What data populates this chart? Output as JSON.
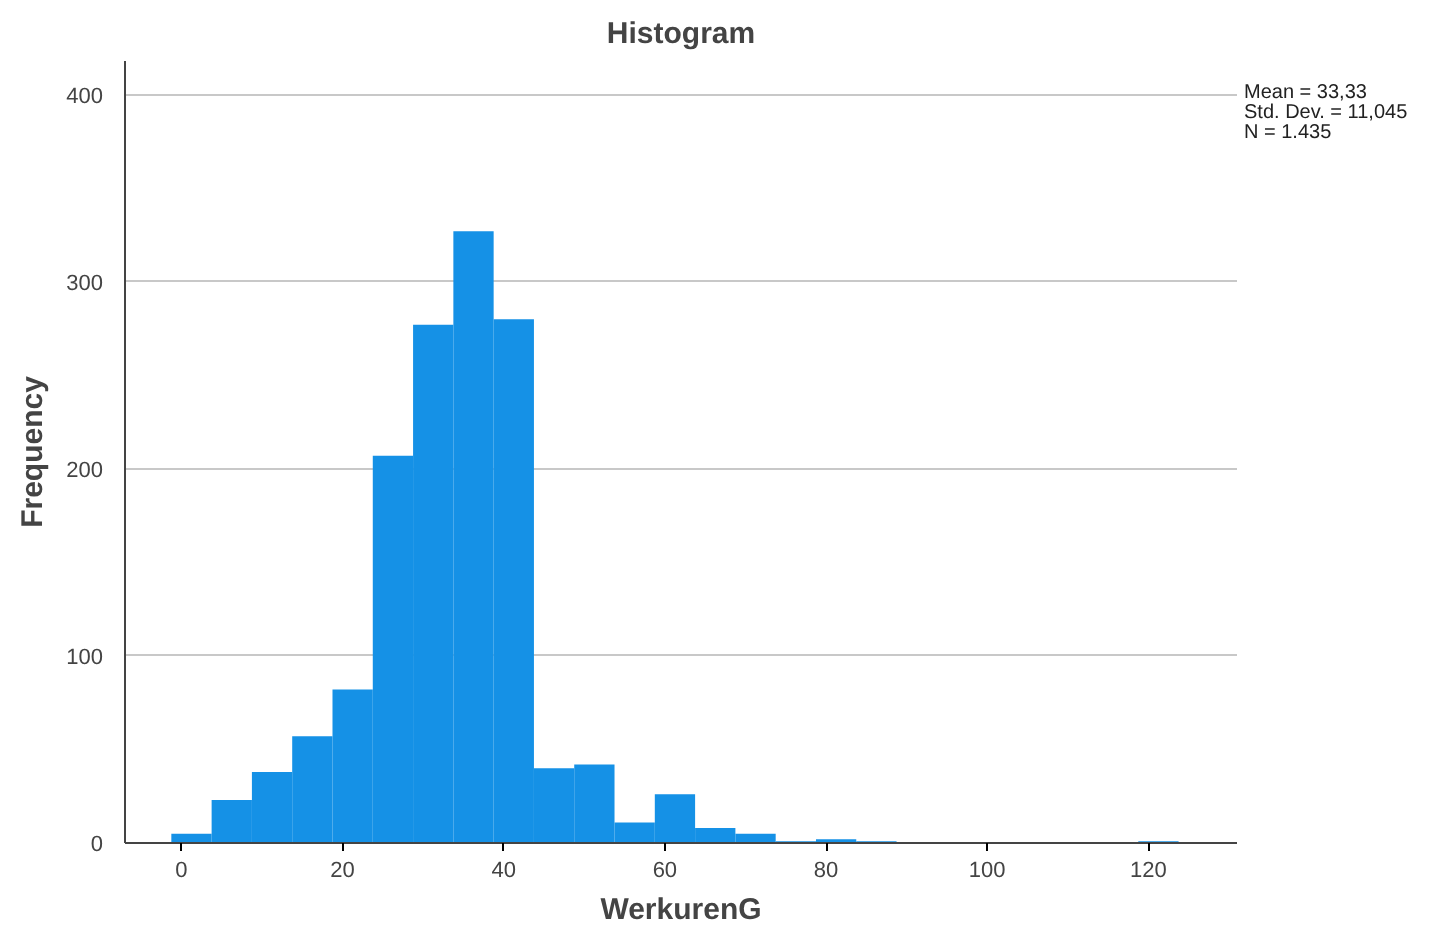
{
  "chart_data": {
    "type": "histogram",
    "title": "Histogram",
    "xlabel": "WerkurenG",
    "ylabel": "Frequency",
    "bins": [
      -1.25,
      3.75,
      8.75,
      13.75,
      18.75,
      23.75,
      28.75,
      33.75,
      38.75,
      43.75,
      48.75,
      53.75,
      58.75,
      63.75,
      68.75,
      73.75,
      78.75,
      83.75,
      88.75,
      93.75,
      98.75,
      103.75,
      108.75,
      113.75,
      118.75,
      123.75
    ],
    "values": [
      5,
      23,
      38,
      57,
      82,
      207,
      277,
      327,
      280,
      40,
      42,
      11,
      26,
      8,
      5,
      1,
      2,
      1,
      0,
      0,
      0,
      0,
      0,
      0,
      1
    ],
    "color": "#1591e6",
    "xlim": [
      -7,
      131
    ],
    "ylim": [
      0,
      418
    ],
    "xticks": [
      0,
      20,
      40,
      60,
      80,
      100,
      120
    ],
    "yticks": [
      0,
      100,
      200,
      300,
      400
    ],
    "grid": "y",
    "annotations": [
      "Mean = 33,33",
      "Std. Dev. = 11,045",
      "N = 1.435"
    ]
  }
}
